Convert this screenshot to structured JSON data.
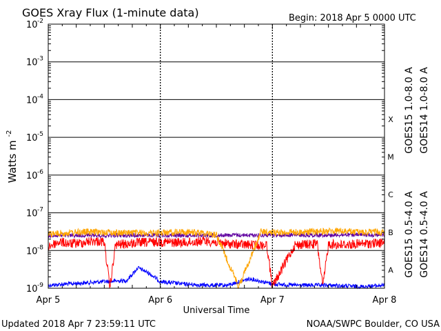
{
  "chart_data": {
    "type": "line",
    "title": "GOES Xray Flux (1-minute data)",
    "begin_label": "Begin:",
    "begin_value": "2018 Apr 5 0000 UTC",
    "xlabel": "Universal Time",
    "ylabel": "Watts m",
    "ylabel_sup": "-2",
    "x_ticks": [
      "Apr 5",
      "Apr 6",
      "Apr 7",
      "Apr 8"
    ],
    "y_scale": "log",
    "ylim": [
      1e-09,
      0.01
    ],
    "y_tick_exponents": [
      -2,
      -3,
      -4,
      -5,
      -6,
      -7,
      -8,
      -9
    ],
    "flare_classes": [
      {
        "label": "X",
        "decade": -4
      },
      {
        "label": "M",
        "decade": -5
      },
      {
        "label": "C",
        "decade": -6
      },
      {
        "label": "B",
        "decade": -7
      },
      {
        "label": "A",
        "decade": -8
      }
    ],
    "series": [
      {
        "name": "GOES15 1.0-8.0 A",
        "color": "#ff0000",
        "x": [
          0,
          0.1,
          0.2,
          0.3,
          0.4,
          0.5,
          0.55,
          0.6,
          0.8,
          1.0,
          1.2,
          1.4,
          1.6,
          1.8,
          1.95,
          2.0,
          2.2,
          2.4,
          2.45,
          2.5,
          2.6,
          2.8,
          3.0
        ],
        "values": [
          1.3e-08,
          1.7e-08,
          1.5e-08,
          1.6e-08,
          1.8e-08,
          1.7e-08,
          1e-09,
          1.4e-08,
          1.6e-08,
          1.7e-08,
          1.6e-08,
          1.8e-08,
          1.5e-08,
          1.4e-08,
          1.4e-08,
          1.1e-09,
          1.4e-08,
          1.5e-08,
          1.1e-09,
          1.5e-08,
          1.4e-08,
          1.5e-08,
          1.6e-08
        ]
      },
      {
        "name": "GOES14 1.0-8.0 A",
        "color": "#ffa500",
        "x": [
          0,
          0.3,
          0.6,
          0.9,
          1.2,
          1.4,
          1.5,
          1.7,
          1.9,
          2.0,
          2.3,
          2.6,
          2.8,
          3.0
        ],
        "values": [
          2.7e-08,
          3.1e-08,
          3e-08,
          2.9e-08,
          3.1e-08,
          2.9e-08,
          2.6e-08,
          1.1e-09,
          3.2e-08,
          3e-08,
          3.1e-08,
          3.3e-08,
          3e-08,
          3.1e-08
        ]
      },
      {
        "name": "GOES15 0.5-4.0 A",
        "color": "#0000ff",
        "x": [
          0,
          0.5,
          0.7,
          0.8,
          0.9,
          1.0,
          1.2,
          1.4,
          1.6,
          1.8,
          2.0,
          2.2,
          2.5,
          2.8,
          3.0
        ],
        "values": [
          1.2e-09,
          1.5e-09,
          1.6e-09,
          3.5e-09,
          2.5e-09,
          1.5e-09,
          1.3e-09,
          1.2e-09,
          1.2e-09,
          1.8e-09,
          1.3e-09,
          1.2e-09,
          1.2e-09,
          1.1e-09,
          1.2e-09
        ]
      },
      {
        "name": "GOES14 0.5-4.0 A",
        "color": "#6000a0",
        "x": [
          0,
          3.0
        ],
        "values": [
          2.5e-08,
          2.6e-08
        ]
      }
    ],
    "grid": true
  },
  "footer": {
    "updated": "Updated 2018 Apr  7 23:59:11 UTC",
    "source": "NOAA/SWPC Boulder, CO USA"
  }
}
